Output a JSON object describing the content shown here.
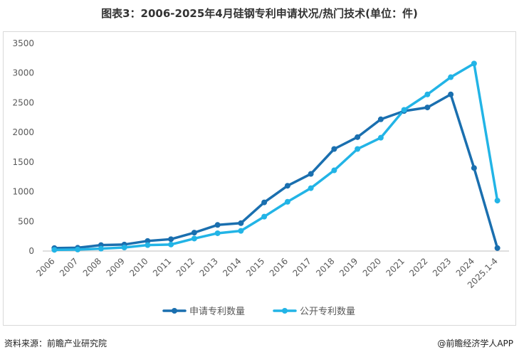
{
  "title": "图表3：2006-2025年4月硅钢专利申请状况/热门技术(单位：件)",
  "footer": {
    "source": "资料来源：前瞻产业研究院",
    "brand": "@前瞻经济学人APP"
  },
  "chart_data": {
    "type": "line",
    "title": "图表3：2006-2025年4月硅钢专利申请状况/热门技术(单位：件)",
    "xlabel": "",
    "ylabel": "",
    "categories": [
      "2006",
      "2007",
      "2008",
      "2009",
      "2010",
      "2011",
      "2012",
      "2013",
      "2014",
      "2015",
      "2016",
      "2017",
      "2018",
      "2019",
      "2020",
      "2021",
      "2022",
      "2023",
      "2024",
      "2025.1-4"
    ],
    "yticks": [
      0,
      500,
      1000,
      1500,
      2000,
      2500,
      3000,
      3500
    ],
    "ylim": [
      0,
      3500
    ],
    "grid": false,
    "legend_position": "bottom",
    "series": [
      {
        "name": "申请专利数量",
        "color": "#1a6faf",
        "values": [
          50,
          55,
          100,
          110,
          170,
          200,
          310,
          440,
          470,
          820,
          1100,
          1300,
          1720,
          1920,
          2220,
          2360,
          2420,
          2640,
          1400,
          50
        ]
      },
      {
        "name": "公开专利数量",
        "color": "#22b4e6",
        "values": [
          20,
          25,
          40,
          60,
          100,
          110,
          210,
          300,
          340,
          580,
          830,
          1060,
          1360,
          1720,
          1910,
          2380,
          2640,
          2930,
          3160,
          850
        ]
      }
    ]
  }
}
